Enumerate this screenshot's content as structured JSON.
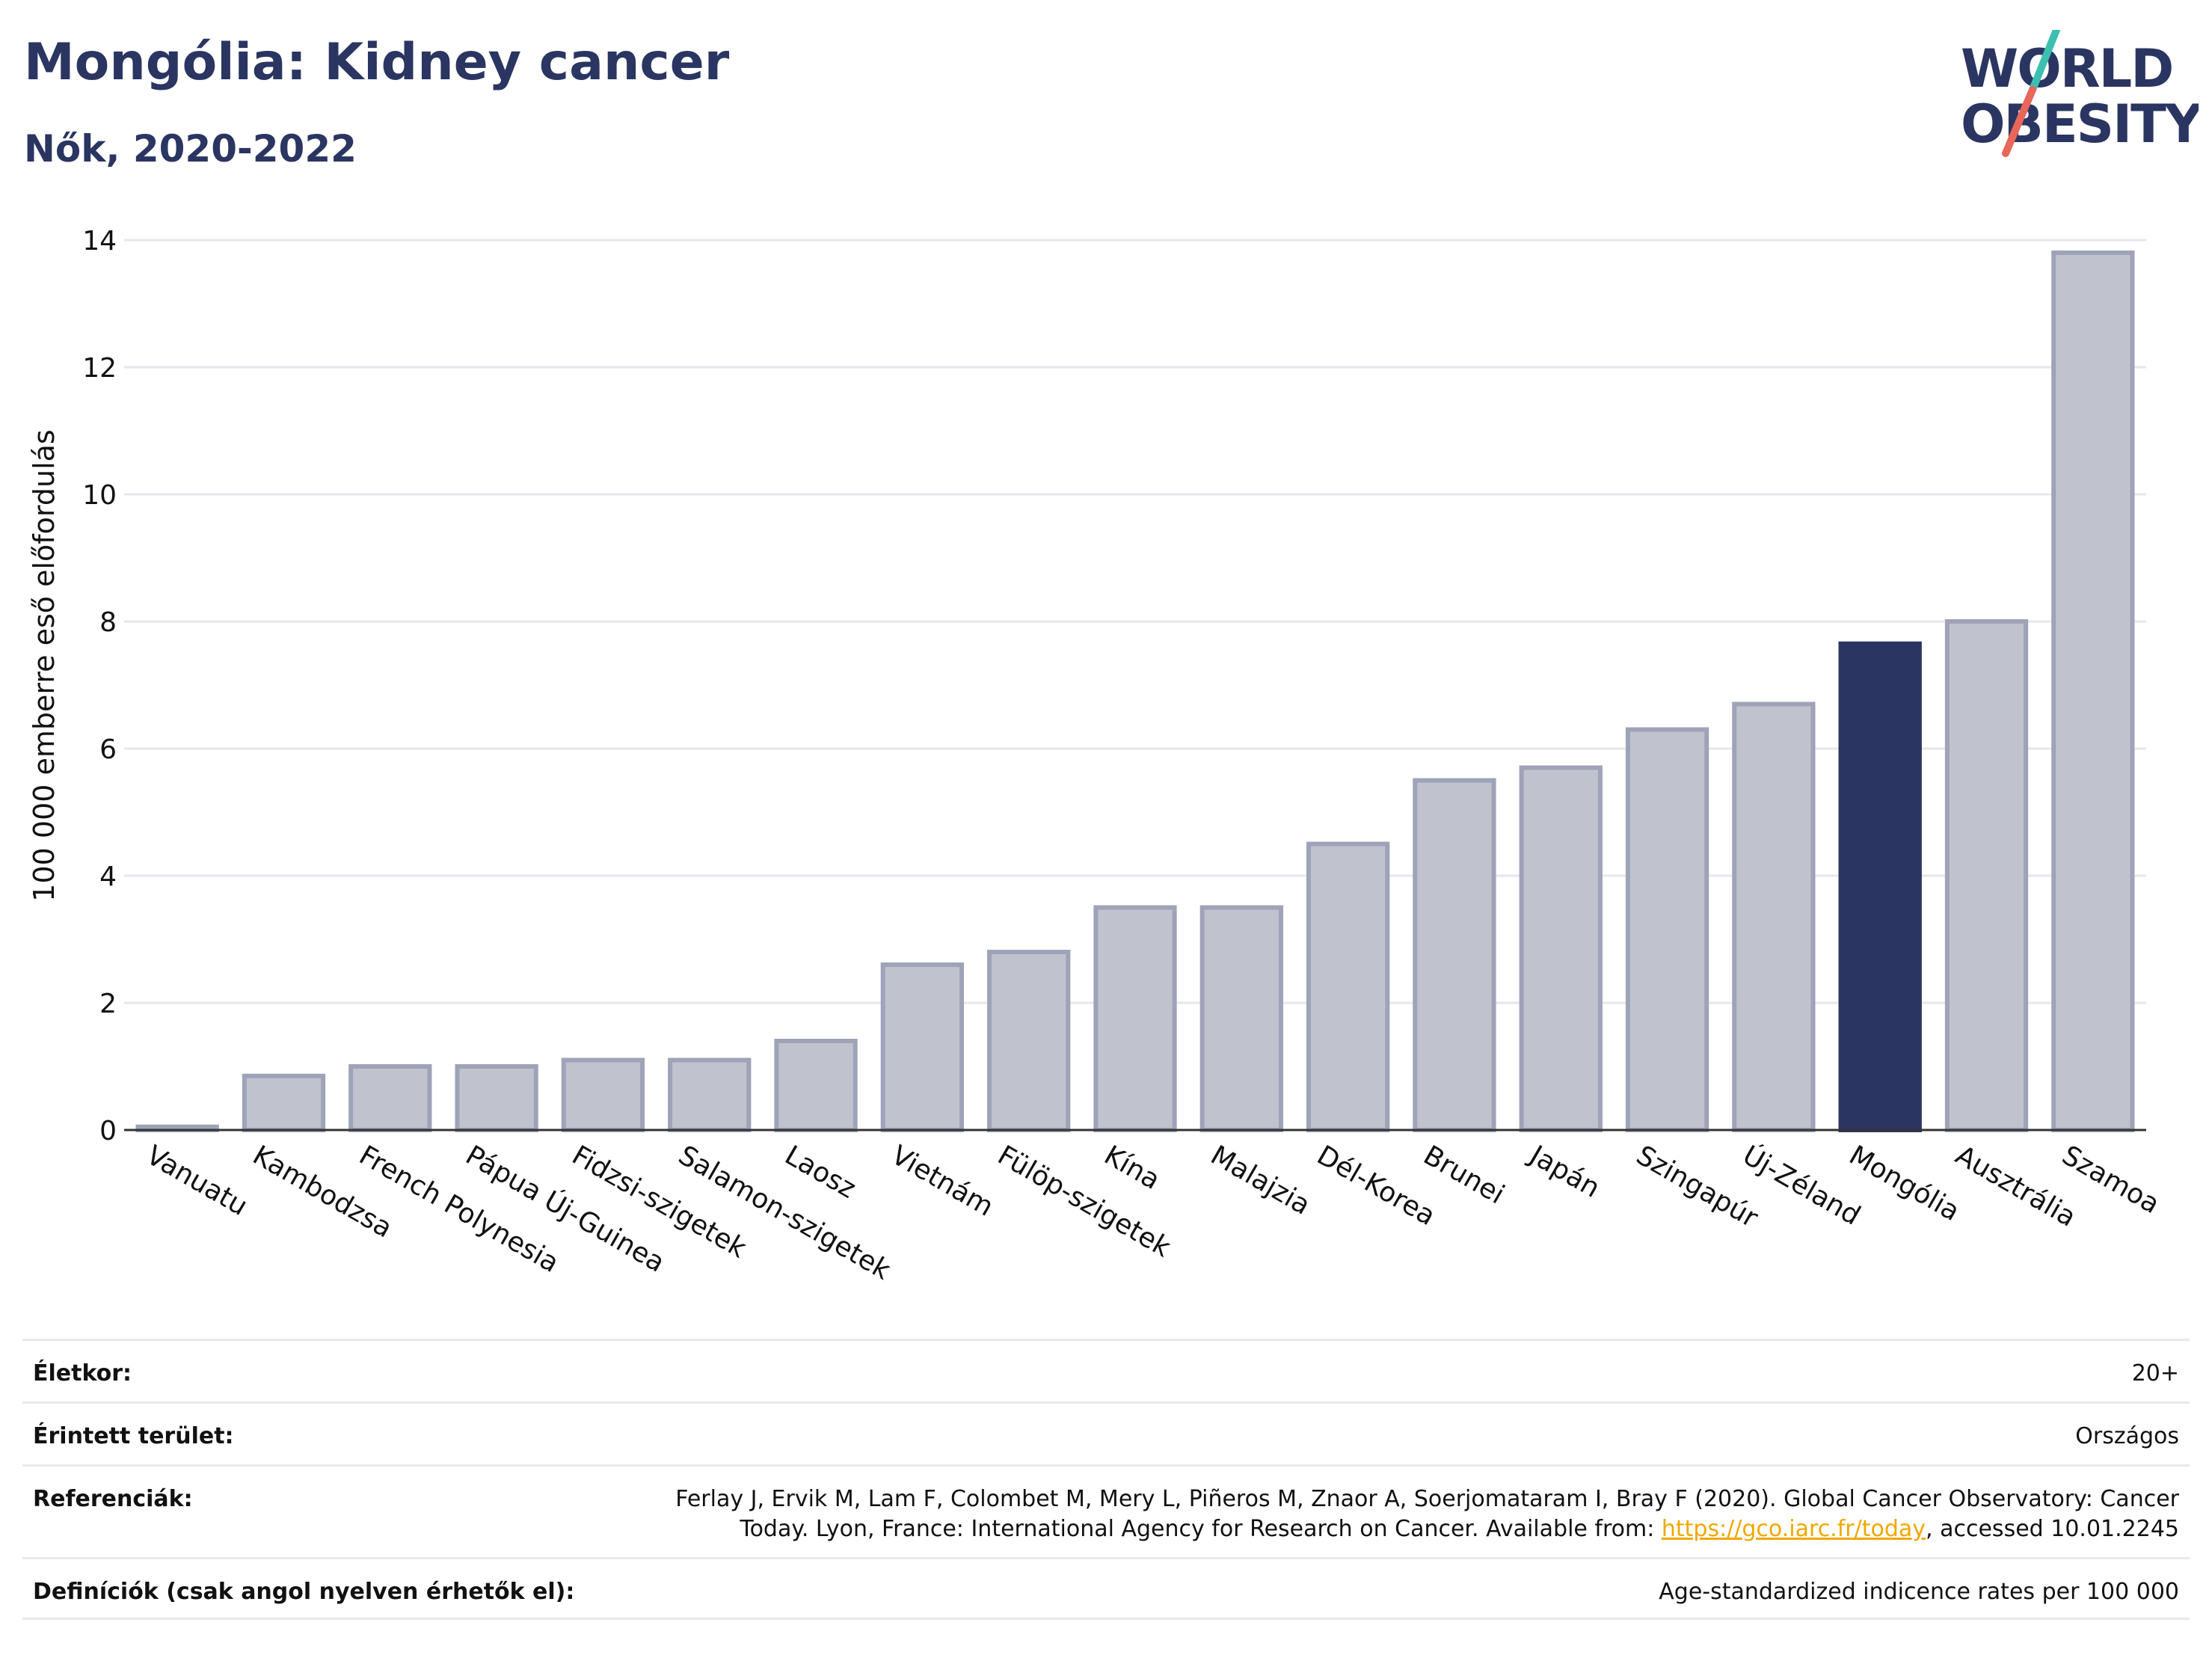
{
  "header": {
    "title": "Mongólia: Kidney cancer",
    "subtitle": "Nők, 2020-2022"
  },
  "logo": {
    "line1": "WORLD",
    "line2": "OBESITY",
    "colors": {
      "text": "#2b3561",
      "slash_teal": "#3dbfb0",
      "slash_red": "#e8665a"
    }
  },
  "chart_data": {
    "type": "bar",
    "ylabel": "100 000 emberre eső előfordulás",
    "xlabel": "",
    "ylim": [
      0,
      14.4
    ],
    "yticks": [
      0,
      2,
      4,
      6,
      8,
      10,
      12,
      14
    ],
    "grid": true,
    "highlight": "Mongólia",
    "colors": {
      "bar": "#c0c3ce",
      "bar_edge": "#9ea3b8",
      "highlight": "#2b3561",
      "grid": "#e6e7ec",
      "axis": "#333333"
    },
    "categories": [
      "Vanuatu",
      "Kambodzsa",
      "French Polynesia",
      "Pápua Új-Guinea",
      "Fidzsi-szigetek",
      "Salamon-szigetek",
      "Laosz",
      "Vietnám",
      "Fülöp-szigetek",
      "Kína",
      "Malajzia",
      "Dél-Korea",
      "Brunei",
      "Japán",
      "Szingapúr",
      "Új-Zéland",
      "Mongólia",
      "Ausztrália",
      "Szamoa"
    ],
    "values": [
      0.05,
      0.85,
      1.0,
      1.0,
      1.1,
      1.1,
      1.4,
      2.6,
      2.8,
      3.5,
      3.5,
      4.5,
      5.5,
      5.7,
      6.3,
      6.7,
      7.65,
      8.0,
      13.8
    ]
  },
  "meta": {
    "age": {
      "label": "Életkor:",
      "value": "20+"
    },
    "area": {
      "label": "Érintett terület:",
      "value": "Országos"
    },
    "refs": {
      "label": "Referenciák:",
      "text1": "Ferlay J, Ervik M, Lam F, Colombet M, Mery L, Piñeros M, Znaor A, Soerjomataram I, Bray F (2020). Global Cancer Observatory: Cancer",
      "text2": "Today. Lyon, France: International Agency for Research on Cancer. Available from: ",
      "link": "https://gco.iarc.fr/today",
      "text3": ", accessed 10.01.2245"
    },
    "defs": {
      "label": "Definíciók (csak angol nyelven érhetők el):",
      "value": "Age-standardized indicence rates per 100 000"
    }
  }
}
